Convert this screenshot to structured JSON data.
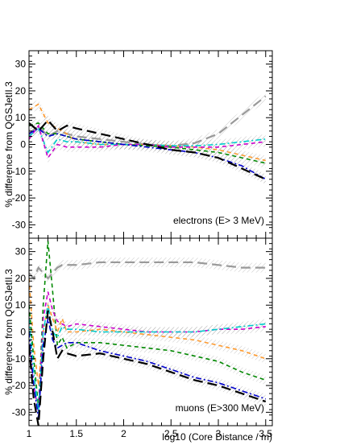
{
  "chart_data": [
    {
      "type": "line",
      "panel": "top",
      "annotation": "electrons (E> 3 MeV)",
      "ylabel": "% difference from QGSJetII.3",
      "xlabel": "",
      "xlim": [
        1.0,
        3.57
      ],
      "ylim": [
        -35,
        35
      ],
      "yticks": [
        30,
        20,
        10,
        0,
        -10,
        -20,
        -30
      ],
      "xticks": [],
      "grid": false,
      "legend": "none",
      "x": [
        1.0,
        1.1,
        1.2,
        1.3,
        1.4,
        1.5,
        1.75,
        2.0,
        2.25,
        2.5,
        2.75,
        3.0,
        3.25,
        3.5
      ],
      "series": [
        {
          "color": "#999999",
          "style": "longdash",
          "values": [
            4,
            7,
            3,
            5,
            4,
            3,
            2,
            1,
            0,
            -0.5,
            0.5,
            4,
            11,
            18
          ]
        },
        {
          "color": "#ff9a2e",
          "style": "dash",
          "values": [
            13,
            15,
            8,
            6,
            4,
            1,
            0,
            0,
            0,
            -0.5,
            -1,
            -2,
            -4,
            -6
          ]
        },
        {
          "color": "#008800",
          "style": "dash",
          "values": [
            7,
            8,
            4,
            4,
            3,
            2,
            1,
            0,
            -0.5,
            -1,
            -2,
            -3,
            -5,
            -7
          ]
        },
        {
          "color": "#00cccc",
          "style": "dashdot",
          "values": [
            3,
            6,
            -3,
            2,
            1,
            1,
            0,
            0,
            0,
            -0.5,
            -0.5,
            0,
            1,
            2
          ]
        },
        {
          "color": "#cc00cc",
          "style": "dash",
          "values": [
            2,
            7,
            -5,
            0,
            -1,
            -1,
            -1,
            0,
            0,
            -1,
            -1,
            -1,
            0,
            1
          ]
        },
        {
          "color": "#0000cc",
          "style": "dashdot",
          "values": [
            4,
            6,
            3,
            4,
            3,
            2,
            1,
            0,
            -1,
            -2,
            -3,
            -5,
            -8,
            -13
          ]
        },
        {
          "color": "#000000",
          "style": "longdash",
          "values": [
            8,
            5,
            9,
            5,
            7,
            6,
            4,
            2,
            0,
            -2,
            -3,
            -5,
            -9,
            -13
          ]
        }
      ]
    },
    {
      "type": "line",
      "panel": "bottom",
      "annotation": "muons (E>300 MeV)",
      "ylabel": "% difference from QGSJetII.3",
      "xlabel": "log10 (Core Distance / m)",
      "xlim": [
        1.0,
        3.57
      ],
      "ylim": [
        -35,
        35
      ],
      "yticks": [
        30,
        20,
        10,
        0,
        -10,
        -20,
        -30
      ],
      "xticks": [
        "1",
        "1.5",
        "2",
        "2.5",
        "3",
        "3.5"
      ],
      "grid": false,
      "legend": "none",
      "x": [
        1.0,
        1.05,
        1.1,
        1.15,
        1.2,
        1.25,
        1.3,
        1.35,
        1.4,
        1.5,
        1.75,
        2.0,
        2.25,
        2.5,
        2.75,
        3.0,
        3.25,
        3.5
      ],
      "series": [
        {
          "color": "#999999",
          "style": "longdash",
          "values": [
            22,
            20,
            24,
            22,
            20,
            22,
            24,
            25,
            25,
            25,
            26,
            26,
            26,
            26,
            26,
            25,
            24,
            24
          ]
        },
        {
          "color": "#008800",
          "style": "dash",
          "values": [
            10,
            -10,
            -28,
            10,
            34,
            15,
            -5,
            -2,
            -6,
            -4,
            -4,
            -5,
            -6,
            -7,
            -9,
            -11,
            -15,
            -18
          ]
        },
        {
          "color": "#ff9a2e",
          "style": "dash",
          "values": [
            20,
            -5,
            -20,
            0,
            10,
            5,
            0,
            5,
            0,
            0,
            1,
            0,
            -1,
            -2,
            -3,
            -5,
            -7,
            -10
          ]
        },
        {
          "color": "#cc00cc",
          "style": "dash",
          "values": [
            -5,
            -20,
            -30,
            5,
            15,
            8,
            4,
            3,
            2,
            3,
            2,
            1,
            0,
            0,
            0,
            1,
            1,
            2
          ]
        },
        {
          "color": "#00cccc",
          "style": "dashdot",
          "values": [
            5,
            -15,
            -30,
            0,
            10,
            0,
            -2,
            2,
            1,
            1,
            0,
            0,
            0,
            0,
            0,
            1,
            2,
            3
          ]
        },
        {
          "color": "#0000cc",
          "style": "dashdot",
          "values": [
            0,
            -20,
            -32,
            -5,
            5,
            -3,
            -6,
            -5,
            -4,
            -4,
            -7,
            -9,
            -11,
            -14,
            -17,
            -19,
            -22,
            -25
          ]
        },
        {
          "color": "#000000",
          "style": "longdash",
          "values": [
            -5,
            -25,
            -35,
            -10,
            8,
            0,
            -10,
            -7,
            -8,
            -9,
            -8,
            -10,
            -12,
            -15,
            -18,
            -20,
            -23,
            -26
          ]
        }
      ]
    }
  ]
}
